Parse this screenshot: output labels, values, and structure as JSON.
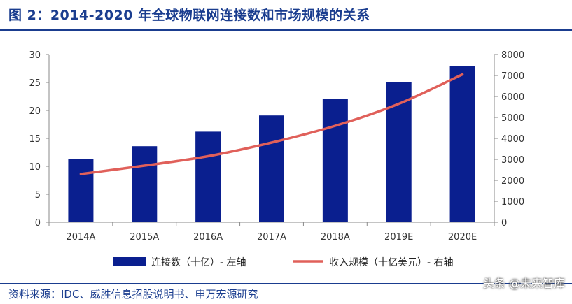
{
  "title": "图 2：2014-2020 年全球物联网连接数和市场规模的关系",
  "source": "资料来源：IDC、威胜信息招股说明书、申万宏源研究",
  "watermark": "头条 @未来智库",
  "colors": {
    "bar": "#0a1f8f",
    "line": "#e0605a",
    "title": "#1a3d8f"
  },
  "chart_data": {
    "type": "bar",
    "categories": [
      "2014A",
      "2015A",
      "2016A",
      "2017A",
      "2018A",
      "2019E",
      "2020E"
    ],
    "series": [
      {
        "name": "连接数（十亿）- 左轴",
        "type": "bar",
        "axis": "left",
        "values": [
          11.3,
          13.6,
          16.2,
          19.1,
          22.1,
          25.1,
          28.0
        ]
      },
      {
        "name": "收入规模（十亿美元）- 右轴",
        "type": "line",
        "axis": "right",
        "values": [
          2300,
          2700,
          3150,
          3800,
          4600,
          5650,
          7050
        ]
      }
    ],
    "y_left": {
      "range": [
        0,
        30
      ],
      "ticks": [
        0,
        5,
        10,
        15,
        20,
        25,
        30
      ]
    },
    "y_right": {
      "range": [
        0,
        8000
      ],
      "ticks": [
        0,
        1000,
        2000,
        3000,
        4000,
        5000,
        6000,
        7000,
        8000
      ]
    },
    "grid": false,
    "legend_position": "bottom"
  }
}
